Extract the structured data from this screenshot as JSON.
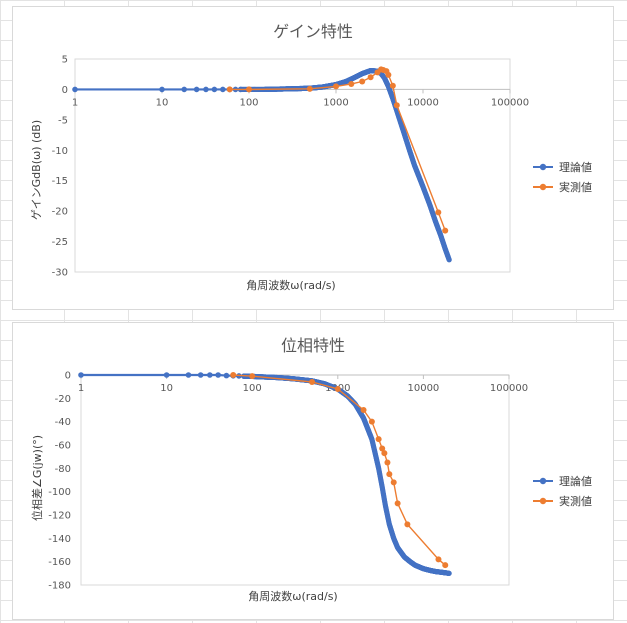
{
  "chart_data": [
    {
      "type": "line",
      "title": "ゲイン特性",
      "xlabel": "角周波数ω(rad/s)",
      "ylabel": "ゲインGdB(ω) (dB)",
      "xscale": "log",
      "xlim": [
        1,
        100000
      ],
      "ylim": [
        -30,
        5
      ],
      "xticks": [
        "1",
        "10",
        "100",
        "1000",
        "10000",
        "100000"
      ],
      "yticks": [
        "5",
        "0",
        "-5",
        "-10",
        "-15",
        "-20",
        "-25",
        "-30"
      ],
      "grid": false,
      "legend": "right",
      "colors": {
        "理論値": "#4472c4",
        "実測値": "#ed7d31"
      },
      "series": [
        {
          "name": "理論値",
          "x": [
            1,
            10,
            18,
            25,
            32,
            40,
            50,
            60,
            70,
            80,
            100,
            150,
            200,
            300,
            500,
            700,
            1000,
            1300,
            1600,
            2000,
            2500,
            3000,
            3300,
            3600,
            4000,
            4500,
            5000,
            6000,
            7000,
            8000,
            10000,
            12000,
            14000,
            16000,
            18000,
            20000
          ],
          "y": [
            0,
            0,
            0,
            0,
            0,
            0,
            0,
            0,
            0,
            0,
            0,
            0,
            0.05,
            0.1,
            0.2,
            0.4,
            0.8,
            1.3,
            1.9,
            2.6,
            3.1,
            3.0,
            2.6,
            1.9,
            0.5,
            -1.5,
            -3.5,
            -7.0,
            -10.0,
            -12.5,
            -16.0,
            -19.0,
            -21.8,
            -24.0,
            -26.2,
            -28.0
          ]
        },
        {
          "name": "実測値",
          "x": [
            60,
            100,
            500,
            1000,
            1500,
            2000,
            2500,
            3000,
            3300,
            3500,
            3800,
            4000,
            4500,
            5000,
            15000,
            18000
          ],
          "y": [
            0,
            0,
            0.1,
            0.5,
            0.9,
            1.3,
            2.0,
            2.8,
            3.3,
            3.2,
            3.0,
            2.4,
            0.6,
            -2.6,
            -20.2,
            -23.2
          ]
        }
      ]
    },
    {
      "type": "line",
      "title": "位相特性",
      "xlabel": "角周波数ω(rad/s)",
      "ylabel": "位相差∠G(jw)(°)",
      "xscale": "log",
      "xlim": [
        1,
        100000
      ],
      "ylim": [
        -180,
        0
      ],
      "xticks": [
        "1",
        "10",
        "100",
        "1000",
        "10000",
        "100000"
      ],
      "yticks": [
        "0",
        "-20",
        "-40",
        "-60",
        "-80",
        "-100",
        "-120",
        "-140",
        "-160",
        "-180"
      ],
      "grid": false,
      "legend": "right",
      "colors": {
        "理論値": "#4472c4",
        "実測値": "#ed7d31"
      },
      "series": [
        {
          "name": "理論値",
          "x": [
            1,
            10,
            18,
            25,
            32,
            40,
            50,
            60,
            70,
            80,
            100,
            150,
            200,
            300,
            500,
            700,
            1000,
            1300,
            1600,
            2000,
            2500,
            3000,
            3300,
            3600,
            4000,
            4500,
            5000,
            6000,
            7000,
            8000,
            10000,
            12000,
            14000,
            16000,
            18000,
            20000
          ],
          "y": [
            0,
            0,
            0,
            0,
            0,
            0,
            -0.5,
            -0.7,
            -0.8,
            -1,
            -1.2,
            -1.8,
            -2.2,
            -3.2,
            -5,
            -7.5,
            -12,
            -18,
            -25,
            -37,
            -55,
            -80,
            -96,
            -112,
            -128,
            -140,
            -148,
            -156,
            -160,
            -163,
            -166,
            -167.5,
            -168.5,
            -169,
            -169.5,
            -170
          ]
        },
        {
          "name": "実測値",
          "x": [
            60,
            100,
            500,
            1000,
            2000,
            2500,
            3000,
            3300,
            3500,
            3800,
            4000,
            4500,
            5000,
            6500,
            15000,
            18000
          ],
          "y": [
            0,
            -1,
            -6,
            -12,
            -30,
            -40,
            -55,
            -63,
            -67,
            -75,
            -85,
            -92,
            -110,
            -128,
            -158,
            -163
          ]
        }
      ]
    }
  ]
}
